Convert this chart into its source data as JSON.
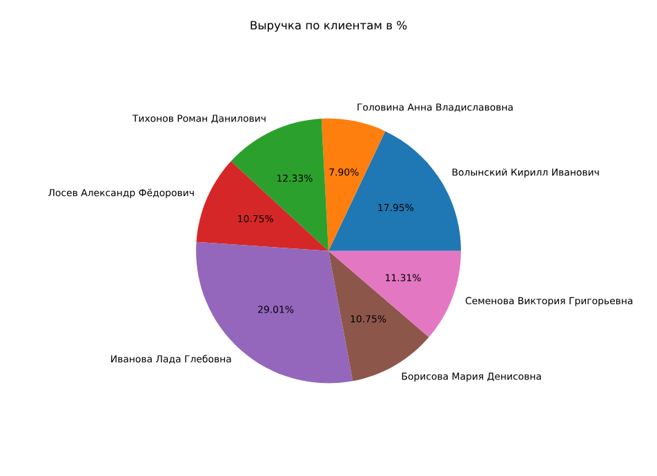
{
  "chart_data": {
    "type": "pie",
    "title": "Выручка по клиентам в %",
    "categories": [
      "Волынский Кирилл Иванович",
      "Головина Анна Владиславовна",
      "Тихонов Роман Данилович",
      "Лосев Александр Фёдорович",
      "Иванова Лада Глебовна",
      "Борисова Мария Денисовна",
      "Семенова Виктория Григорьевна"
    ],
    "values": [
      17.95,
      7.9,
      12.33,
      10.75,
      29.01,
      10.75,
      11.31
    ],
    "value_labels": [
      "17.95%",
      "7.90%",
      "12.33%",
      "10.75%",
      "29.01%",
      "10.75%",
      "11.31%"
    ],
    "colors": [
      "#1f77b4",
      "#ff7f0e",
      "#2ca02c",
      "#d62728",
      "#9467bd",
      "#8c564b",
      "#e377c2"
    ]
  }
}
